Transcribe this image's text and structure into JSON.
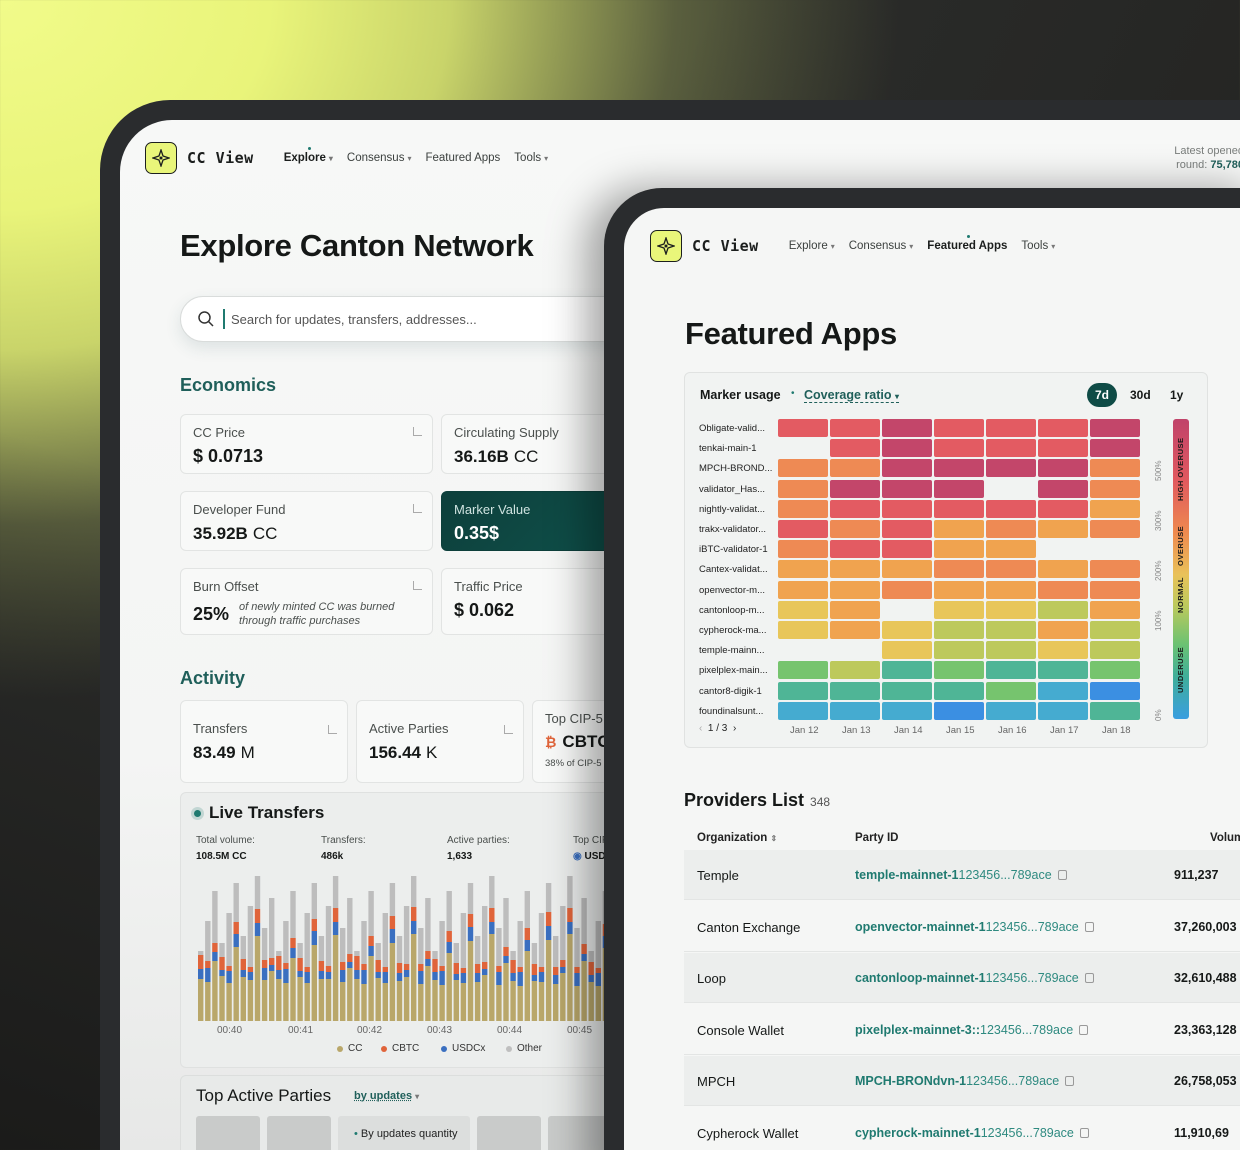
{
  "colors": {
    "accent": "#1f7a70",
    "brand_yellow": "#e9f67a",
    "dark_card": "#0f5750",
    "cc": "#b9a76a",
    "cbtc": "#e0643a",
    "usdcx": "#3a6fc0",
    "other": "#bfbfbf"
  },
  "back": {
    "brand": "CC View",
    "nav": [
      "Explore",
      "Consensus",
      "Featured Apps",
      "Tools"
    ],
    "round_label": "Latest opened",
    "round_prefix": "round:",
    "round_value": "75,780",
    "title": "Explore Canton Network",
    "search_placeholder": "Search for updates, transfers, addresses...",
    "economics_title": "Economics",
    "cards": {
      "cc_price_label": "CC Price",
      "cc_price_value": "$ 0.0713",
      "supply_label": "Circulating Supply",
      "supply_value": "36.16B",
      "supply_unit": "CC",
      "dev_fund_label": "Developer Fund",
      "dev_fund_value": "35.92B",
      "dev_fund_unit": "CC",
      "marker_label": "Marker Value",
      "marker_value": "0.35$",
      "burn_label": "Burn Offset",
      "burn_value": "25%",
      "burn_note_1": "of newly minted CC was burned",
      "burn_note_2": "through traffic purchases",
      "traffic_label": "Traffic Price",
      "traffic_value": "$ 0.062"
    },
    "activity_title": "Activity",
    "activity": {
      "transfers_label": "Transfers",
      "transfers_value": "83.49",
      "transfers_unit": "M",
      "parties_label": "Active Parties",
      "parties_value": "156.44",
      "parties_unit": "K",
      "top_cip_label": "Top CIP-5",
      "top_cip_value": "CBTC",
      "top_cip_note": "38% of CIP-5"
    },
    "live": {
      "title": "Live Transfers",
      "total_label": "Total volume:",
      "total_value": "108.5M CC",
      "transfers_label": "Transfers:",
      "transfers_value": "486k",
      "parties_label": "Active parties:",
      "parties_value": "1,633",
      "top_label": "Top CIP",
      "top_value": "USD",
      "times": [
        "00:40",
        "00:41",
        "00:42",
        "00:43",
        "00:44",
        "00:45"
      ],
      "legend": [
        "CC",
        "CBTC",
        "USDCx",
        "Other"
      ]
    },
    "top_parties": {
      "title": "Top Active Parties",
      "by": "by updates",
      "tab": "By updates quantity"
    }
  },
  "front": {
    "brand": "CC View",
    "nav": [
      "Explore",
      "Consensus",
      "Featured Apps",
      "Tools"
    ],
    "title": "Featured Apps",
    "heat_title": "Marker usage",
    "heat_metric": "Coverage ratio",
    "ranges": [
      "7d",
      "30d",
      "1y"
    ],
    "apps": [
      "Obligate-valid...",
      "tenkai-main-1",
      "MPCH-BROND...",
      "validator_Has...",
      "nightly-validat...",
      "trakx-validator...",
      "iBTC-validator-1",
      "Cantex-validat...",
      "openvector-m...",
      "cantonloop-m...",
      "cypherock-ma...",
      "temple-mainn...",
      "pixelplex-main...",
      "cantor8-digik-1",
      "foundinalsunt..."
    ],
    "dates": [
      "Jan 12",
      "Jan 13",
      "Jan 14",
      "Jan 15",
      "Jan 16",
      "Jan 17",
      "Jan 18"
    ],
    "pager": "1 / 3",
    "scale_ticks": [
      "500%",
      "300%",
      "200%",
      "100%",
      "0%"
    ],
    "scale_bands": [
      "HIGH OVERUSE",
      "OVERUSE",
      "NORMAL",
      "UNDERUSE"
    ],
    "providers_title": "Providers List",
    "providers_count": "348",
    "columns": [
      "Organization",
      "Party ID",
      "Volum"
    ],
    "providers": [
      {
        "org": "Temple",
        "pid": "temple-mainnet-1",
        "hash": "123456...789ace",
        "vol": "911,237"
      },
      {
        "org": "Canton Exchange",
        "pid": "openvector-mainnet-1",
        "hash": "123456...789ace",
        "vol": "37,260,003"
      },
      {
        "org": "Loop",
        "pid": "cantonloop-mainnet-1",
        "hash": "123456...789ace",
        "vol": "32,610,488"
      },
      {
        "org": "Console Wallet",
        "pid": "pixelplex-mainnet-3::",
        "hash": "123456...789ace",
        "vol": "23,363,128"
      },
      {
        "org": "MPCH",
        "pid": "MPCH-BRONdvn-1",
        "hash": "123456...789ace",
        "vol": "26,758,053"
      },
      {
        "org": "Cypherock Wallet",
        "pid": "cypherock-mainnet-1",
        "hash": "123456...789ace",
        "vol": "11,910,69"
      }
    ]
  }
}
